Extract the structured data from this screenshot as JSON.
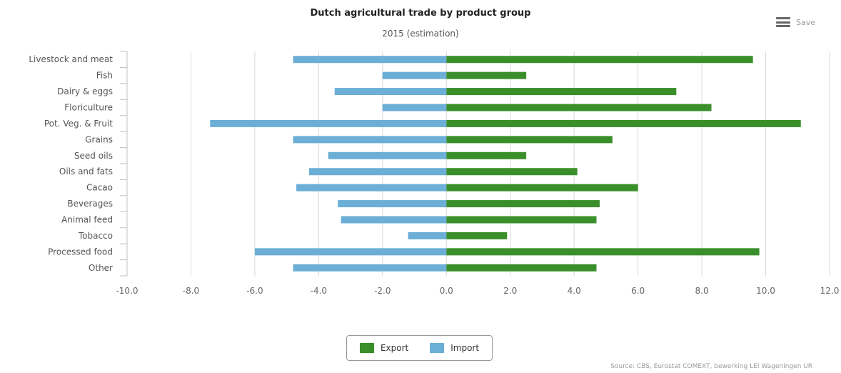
{
  "header": {
    "title": "Dutch agricultural trade by product group",
    "subtitle": "2015 (estimation)",
    "save_label": "Save"
  },
  "source": "Source: CBS, Eurostat COMEXT, bewerking LEI Wageningen UR",
  "chart_data": {
    "type": "bar",
    "orientation": "horizontal",
    "title": "Dutch agricultural trade by product group",
    "subtitle": "2015 (estimation)",
    "categories": [
      "Livestock and meat",
      "Fish",
      "Dairy & eggs",
      "Floriculture",
      "Pot. Veg. & Fruit",
      "Grains",
      "Seed oils",
      "Oils and fats",
      "Cacao",
      "Beverages",
      "Animal feed",
      "Tobacco",
      "Processed food",
      "Other"
    ],
    "series": [
      {
        "name": "Export",
        "color": "#3a8f2a",
        "values": [
          9.6,
          2.5,
          7.2,
          8.3,
          11.1,
          5.2,
          2.5,
          4.1,
          6.0,
          4.8,
          4.7,
          1.9,
          9.8,
          4.7
        ]
      },
      {
        "name": "Import",
        "color": "#6baed6",
        "values": [
          -4.8,
          -2.0,
          -3.5,
          -2.0,
          -7.4,
          -4.8,
          -3.7,
          -4.3,
          -4.7,
          -3.4,
          -3.3,
          -1.2,
          -6.0,
          -4.8
        ]
      }
    ],
    "xlim": [
      -10,
      12
    ],
    "xticks": [
      -10,
      -8,
      -6,
      -4,
      -2,
      0,
      2,
      4,
      6,
      8,
      10,
      12
    ],
    "tick_labels": [
      "-10.0",
      "-8.0",
      "-6.0",
      "-4.0",
      "-2.0",
      "0.0",
      "2.0",
      "4.0",
      "6.0",
      "8.0",
      "10.0",
      "12.0"
    ],
    "grid": true,
    "legend": "bottom-center"
  }
}
